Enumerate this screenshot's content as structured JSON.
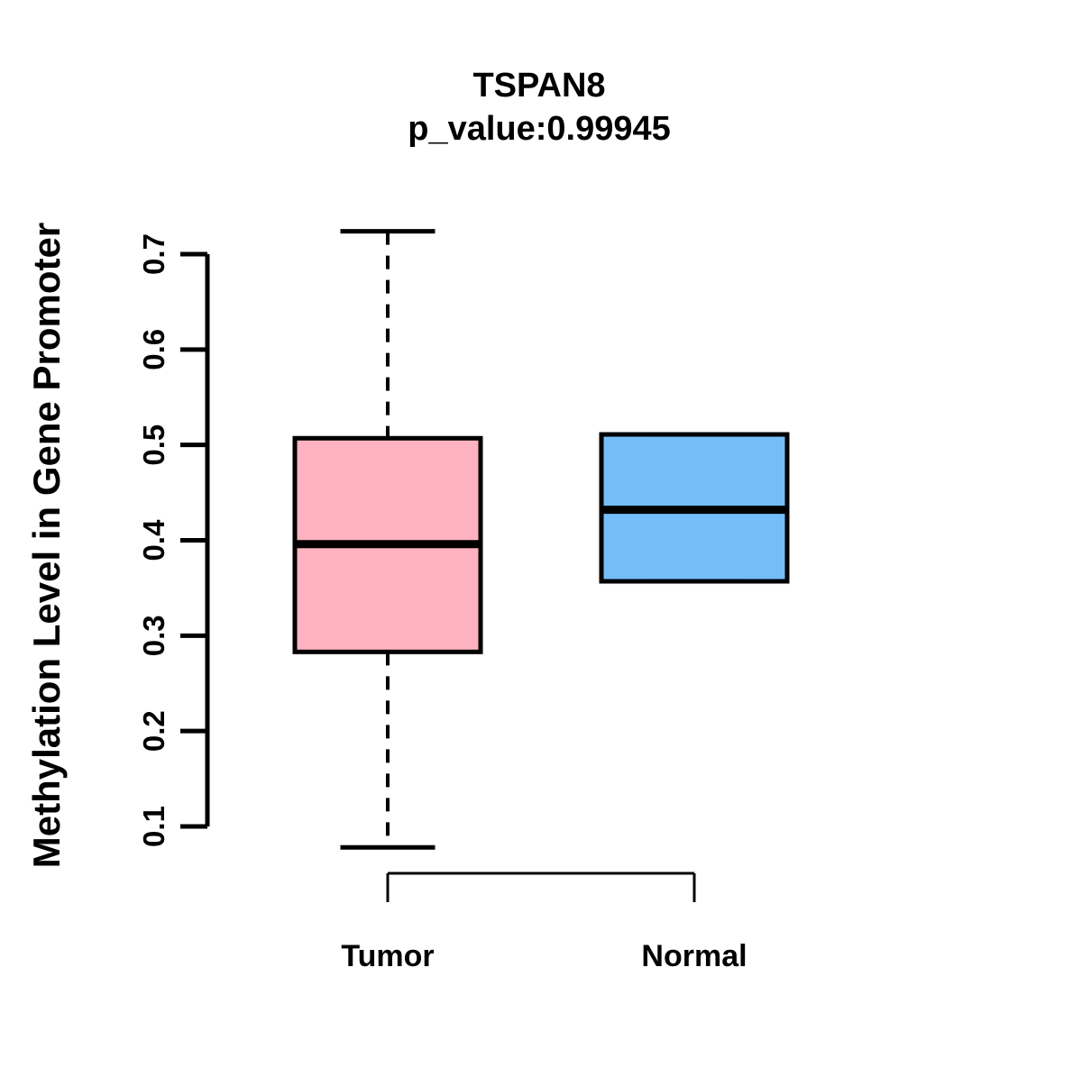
{
  "chart_data": {
    "type": "boxplot",
    "title": "TSPAN8",
    "subtitle": "p_value:0.99945",
    "ylabel": "Methylation Level in Gene Promoter",
    "xlabel": "",
    "categories": [
      "Tumor",
      "Normal"
    ],
    "yticks": [
      0.1,
      0.2,
      0.3,
      0.4,
      0.5,
      0.6,
      0.7
    ],
    "ylim": [
      0.06,
      0.73
    ],
    "grid": "off",
    "legend": "none",
    "series": [
      {
        "name": "Tumor",
        "color": "#FFB3C1",
        "whisker_low": 0.078,
        "q1": 0.283,
        "median": 0.396,
        "q3": 0.507,
        "whisker_high": 0.724
      },
      {
        "name": "Normal",
        "color": "#74BDF7",
        "whisker_low": 0.357,
        "q1": 0.357,
        "median": 0.432,
        "q3": 0.511,
        "whisker_high": 0.511
      }
    ],
    "line_color": "#000000",
    "background_color": "#FFFFFF"
  }
}
